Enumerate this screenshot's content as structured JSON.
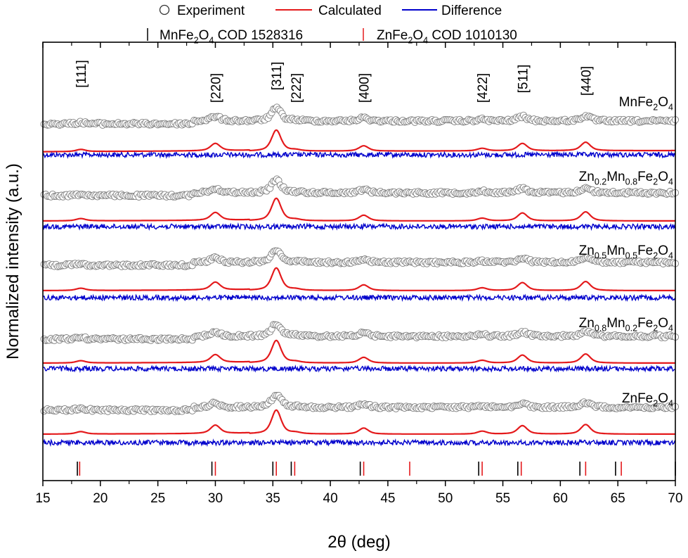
{
  "chart_data": {
    "type": "line",
    "xlabel": "2θ (deg)",
    "ylabel": "Normalized intensity (a.u.)",
    "xlim": [
      15,
      70
    ],
    "xticks": [
      15,
      20,
      25,
      30,
      35,
      40,
      45,
      50,
      55,
      60,
      65,
      70
    ],
    "legend": {
      "placement": "top",
      "entries": [
        "Experiment",
        "Calculated",
        "Difference"
      ],
      "reference_entries": [
        {
          "parts": [
            "MnFe",
            "2",
            "O",
            "4",
            " COD 1528316"
          ],
          "color": "#000000"
        },
        {
          "parts": [
            "ZnFe",
            "2",
            "O",
            "4",
            " COD 1010130"
          ],
          "color": "#e41a1c"
        }
      ]
    },
    "colors": {
      "experiment": "#7f7f7f",
      "calculated": "#e41a1c",
      "difference": "#0000cc"
    },
    "reflections": [
      {
        "label": "[111]",
        "x": 18.3
      },
      {
        "label": "[220]",
        "x": 30.0
      },
      {
        "label": "[311]",
        "x": 35.3
      },
      {
        "label": "[222]",
        "x": 37.0
      },
      {
        "label": "[400]",
        "x": 42.9
      },
      {
        "label": "[422]",
        "x": 53.2
      },
      {
        "label": "[511]",
        "x": 56.7
      },
      {
        "label": "[440]",
        "x": 62.2
      }
    ],
    "peaks_2theta": [
      18.3,
      30.0,
      35.3,
      37.0,
      42.9,
      53.2,
      56.7,
      62.2
    ],
    "peak_relative_intensity": [
      0.1,
      0.35,
      1.0,
      0.05,
      0.25,
      0.12,
      0.35,
      0.4
    ],
    "samples": [
      {
        "parts": [
          "MnFe",
          "2",
          "O",
          "4"
        ]
      },
      {
        "parts": [
          "Zn",
          "0.2",
          "Mn",
          "0.8",
          "Fe",
          "2",
          "O",
          "4"
        ]
      },
      {
        "parts": [
          "Zn",
          "0.5",
          "Mn",
          "0.5",
          "Fe",
          "2",
          "O",
          "4"
        ]
      },
      {
        "parts": [
          "Zn",
          "0.8",
          "Mn",
          "0.2",
          "Fe",
          "2",
          "O",
          "4"
        ]
      },
      {
        "parts": [
          "ZnFe",
          "2",
          "O",
          "4"
        ]
      }
    ],
    "reference_ticks": {
      "MnFe2O4": [
        18.0,
        29.7,
        35.0,
        36.6,
        42.6,
        52.9,
        56.3,
        61.7,
        64.8,
        70.0
      ],
      "ZnFe2O4": [
        18.2,
        30.0,
        35.3,
        36.9,
        42.9,
        46.9,
        53.2,
        56.6,
        62.2,
        65.3
      ]
    }
  }
}
